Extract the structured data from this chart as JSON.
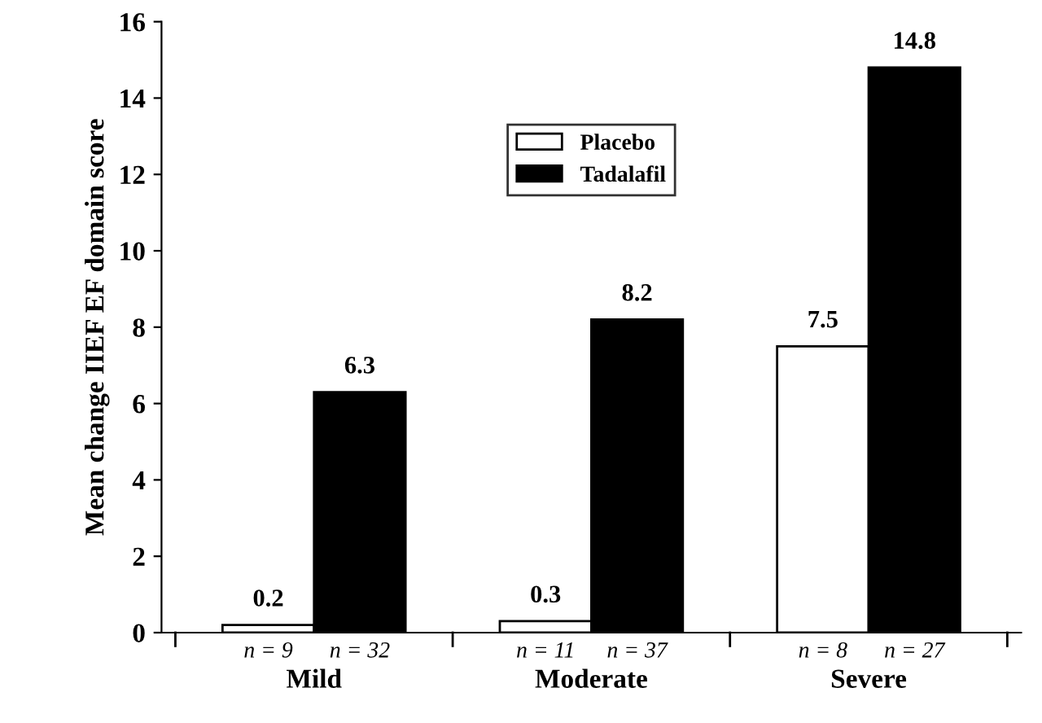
{
  "chart_data": {
    "type": "bar",
    "ylabel": "Mean change IIEF EF domain score",
    "categories": [
      "Mild",
      "Moderate",
      "Severe"
    ],
    "series": [
      {
        "name": "Placebo",
        "color": "#ffffff",
        "values": [
          0.2,
          0.3,
          7.5
        ]
      },
      {
        "name": "Tadalafil",
        "color": "#000000",
        "values": [
          6.3,
          8.2,
          14.8
        ]
      }
    ],
    "ylim": [
      0,
      16
    ],
    "yticks": [
      0,
      2,
      4,
      6,
      8,
      10,
      12,
      14,
      16
    ],
    "data_labels": true,
    "grid": false,
    "legend": "top",
    "annotations": [
      "n = 9",
      "n = 32",
      "n = 11",
      "n = 37",
      "n = 8",
      "n = 27"
    ]
  }
}
